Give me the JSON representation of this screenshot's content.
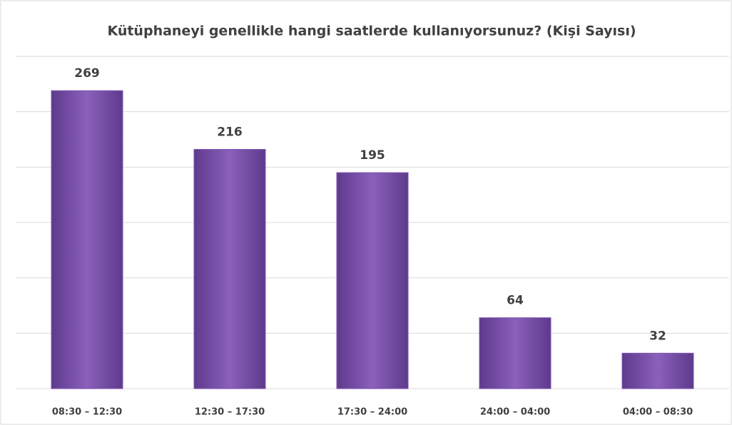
{
  "chart_data": {
    "type": "bar",
    "title": "Kütüphaneyi genellikle hangi saatlerde kullanıyorsunuz? (Kişi Sayısı)",
    "categories": [
      "08:30 – 12:30",
      "12:30 – 17:30",
      "17:30 – 24:00",
      "24:00 – 04:00",
      "04:00 – 08:30"
    ],
    "values": [
      269,
      216,
      195,
      64,
      32
    ],
    "color": "#7f56b0",
    "ylim": [
      0,
      300
    ],
    "yticks": [
      0,
      50,
      100,
      150,
      200,
      250,
      300
    ],
    "grid": true
  }
}
